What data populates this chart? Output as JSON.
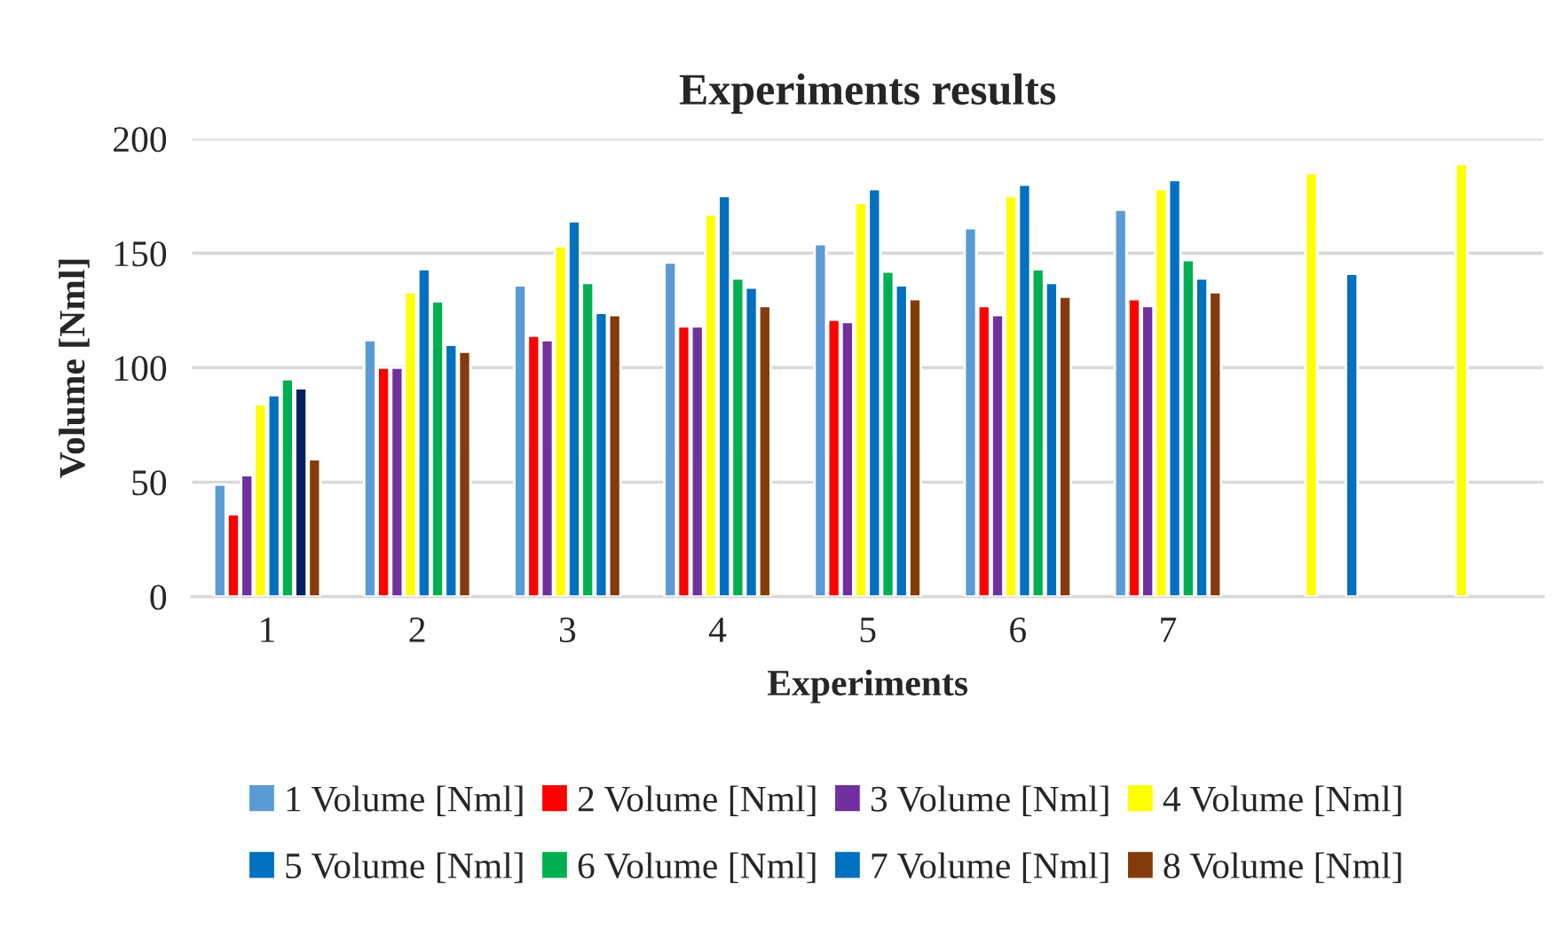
{
  "chart_data": {
    "type": "bar",
    "title": "Experiments results",
    "xlabel": "Experiments",
    "ylabel": "Volume [Nml]",
    "categories": [
      "1",
      "2",
      "3",
      "4",
      "5",
      "6",
      "7",
      null,
      null
    ],
    "series": [
      {
        "name": "1 Volume [Nml]",
        "color": "#5b9bd5",
        "values": [
          49,
          112,
          136,
          146,
          154,
          161,
          169,
          null,
          null
        ]
      },
      {
        "name": "2 Volume [Nml]",
        "color": "#ff0000",
        "values": [
          36,
          100,
          114,
          118,
          121,
          127,
          130,
          null,
          null
        ]
      },
      {
        "name": "3 Volume [Nml]",
        "color": "#7030a0",
        "values": [
          53,
          100,
          112,
          118,
          120,
          123,
          127,
          null,
          null
        ]
      },
      {
        "name": "4 Volume [Nml]",
        "color": "#ffff00",
        "values": [
          84,
          133,
          153,
          167,
          172,
          175,
          178,
          185,
          189
        ]
      },
      {
        "name": "5 Volume [Nml]",
        "color": "#0070c0",
        "values": [
          88,
          143,
          164,
          175,
          178,
          180,
          182,
          null,
          null
        ]
      },
      {
        "name": "6 Volume [Nml]",
        "color": "#00b050",
        "values": [
          95,
          129,
          137,
          139,
          142,
          143,
          147,
          null,
          null
        ]
      },
      {
        "name": "7 Volume [Nml]",
        "color": "#0070c0",
        "colors": [
          "#002060",
          "#0070c0",
          "#0070c0",
          "#0070c0",
          "#0070c0",
          "#0070c0",
          "#0070c0",
          "#0070c0",
          "#0070c0"
        ],
        "values": [
          91,
          110,
          124,
          135,
          136,
          137,
          139,
          141,
          null
        ]
      },
      {
        "name": "8 Volume [Nml]",
        "color": "#843c0c",
        "values": [
          60,
          107,
          123,
          127,
          130,
          131,
          133,
          null,
          null
        ]
      }
    ],
    "ylim": [
      0,
      200
    ],
    "yticks": [
      0,
      50,
      100,
      150,
      200
    ],
    "grid": "y",
    "legend": "bottom"
  }
}
